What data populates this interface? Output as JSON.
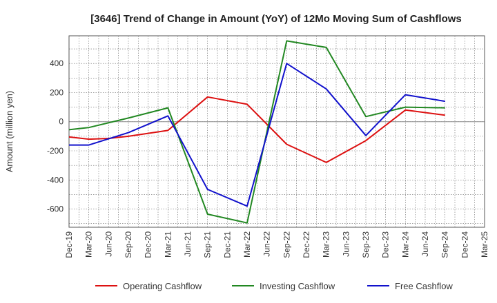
{
  "chart_data": {
    "type": "line",
    "title": "[3646]  Trend of Change in Amount (YoY) of 12Mo Moving Sum of Cashflows",
    "xlabel": "",
    "ylabel": "Amount (million yen)",
    "ylim": [
      -725,
      590
    ],
    "yticks": [
      400,
      200,
      0,
      -200,
      -400,
      -600
    ],
    "categories": [
      "Dec-19",
      "Mar-20",
      "Jun-20",
      "Sep-20",
      "Dec-20",
      "Mar-21",
      "Jun-21",
      "Sep-21",
      "Dec-21",
      "Mar-22",
      "Jun-22",
      "Sep-22",
      "Dec-22",
      "Mar-23",
      "Jun-23",
      "Sep-23",
      "Dec-23",
      "Mar-24",
      "Jun-24",
      "Sep-24",
      "Dec-24",
      "Mar-25"
    ],
    "series": [
      {
        "name": "Operating Cashflow",
        "color": "#dd1111",
        "values": [
          -105,
          -120,
          -115,
          -100,
          -80,
          -60,
          null,
          170,
          null,
          120,
          null,
          -155,
          null,
          -280,
          null,
          -130,
          null,
          80,
          null,
          45,
          null,
          null
        ]
      },
      {
        "name": "Investing Cashflow",
        "color": "#228822",
        "values": [
          -55,
          -40,
          null,
          25,
          null,
          95,
          null,
          -635,
          null,
          -695,
          null,
          555,
          null,
          510,
          null,
          35,
          null,
          100,
          null,
          95,
          null,
          null
        ]
      },
      {
        "name": "Free Cashflow",
        "color": "#1111cc",
        "values": [
          -160,
          -160,
          null,
          -75,
          null,
          40,
          null,
          -465,
          null,
          -580,
          null,
          400,
          null,
          225,
          null,
          -95,
          null,
          185,
          null,
          140,
          null,
          null
        ]
      }
    ],
    "grid": true,
    "legend": "bottom"
  }
}
